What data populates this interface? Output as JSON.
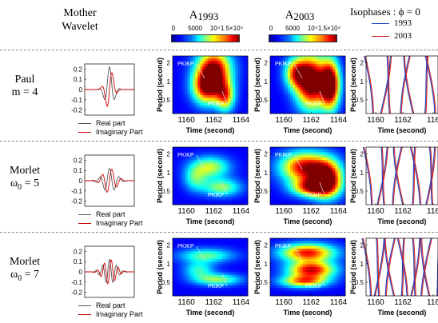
{
  "headers": {
    "wavelet_line1": "Mother",
    "wavelet_line2": "Wavelet",
    "a1993_main": "A",
    "a1993_sub": "1993",
    "a2003_main": "A",
    "a2003_sub": "2003",
    "isophase_title": "Isophases : ϕ = 0",
    "isophase_1993": "1993",
    "isophase_2003": "2003"
  },
  "colorbar": {
    "ticks": [
      "0",
      "5000",
      "10⁴",
      "1.5×10⁴"
    ]
  },
  "colors": {
    "series_1993": "#1f3fbf",
    "series_2003": "#d42020",
    "real_part": "#555555",
    "imag_part": "#cc0000"
  },
  "rows": [
    {
      "label_line1": "Paul",
      "label_line2": "m = 4",
      "label_sub": "",
      "wavelet_type": "paul",
      "legend_real": "Real part",
      "legend_imag": "Imaginary Part",
      "annotations_1993": [
        "PKIKP",
        "PKiKP"
      ],
      "annotations_2003": [
        "PKIKP",
        "PKiKP"
      ]
    },
    {
      "label_line1": "Morlet",
      "label_line2": "ω",
      "label_sub": "0",
      "label_eq": " = 5",
      "wavelet_type": "morlet5",
      "legend_real": "Real part",
      "legend_imag": "Imaginary Part",
      "annotations_1993": [
        "PKIKP",
        "PKiKP"
      ],
      "annotations_2003": [
        "PKIKP",
        "PKiKP"
      ]
    },
    {
      "label_line1": "Morlet",
      "label_line2": "ω",
      "label_sub": "0",
      "label_eq": " = 7",
      "wavelet_type": "morlet7",
      "legend_real": "Real part",
      "legend_imag": "Imaginary Part",
      "annotations_1993": [
        "PKIKP",
        "PKiKP"
      ],
      "annotations_2003": [
        "PKiKP",
        "PKIKP"
      ]
    }
  ],
  "chart_data": [
    {
      "type": "line",
      "panel": "mother-wavelet",
      "y_ticks": [
        "0.2",
        "0.1",
        "0",
        "-0.1",
        "-0.2"
      ],
      "ylim": [
        -0.25,
        0.25
      ],
      "series": [
        {
          "name": "Real part"
        },
        {
          "name": "Imaginary Part"
        }
      ]
    },
    {
      "type": "heatmap",
      "panel": "wavelet-amplitude",
      "x_ticks": [
        "1160",
        "1162",
        "1164"
      ],
      "x": [
        1160,
        1162,
        1164
      ],
      "xlim": [
        1159,
        1164.5
      ],
      "xlabel": "Time (second)",
      "ylabel": "Period (second)",
      "y_ticks": [
        "2",
        "1",
        "0.5"
      ],
      "y": [
        2,
        1,
        0.5
      ],
      "ylim": [
        0.3,
        2.6
      ],
      "colorbar_range": [
        0,
        15000
      ]
    },
    {
      "type": "line",
      "panel": "isophases",
      "x_ticks": [
        "1160",
        "1162",
        "116"
      ],
      "xlabel": "Time (second)",
      "ylabel": "Period (second)",
      "y_ticks": [
        "2",
        "1",
        "0.5"
      ]
    }
  ]
}
